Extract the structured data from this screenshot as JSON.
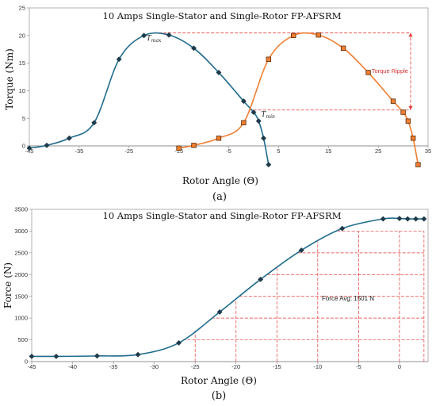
{
  "chart_data": [
    {
      "type": "line",
      "title": "10 Amps Single-Stator and Single-Rotor FP-AFSRM",
      "xlabel": "Rotor Angle (Θ)",
      "ylabel": "Torque (Nm)",
      "caption": "(a)",
      "xlim": [
        -45,
        35
      ],
      "ylim": [
        0,
        25
      ],
      "xticks": [
        -45,
        -35,
        -25,
        -15,
        -5,
        5,
        15,
        25,
        35
      ],
      "yticks": [
        0,
        5,
        10,
        15,
        20,
        25
      ],
      "grid": false,
      "series": [
        {
          "color": "#1f6b8c",
          "marker": "diamond",
          "x": [
            -45,
            -41.5,
            -37,
            -32,
            -27,
            -22,
            -17,
            -12,
            -7,
            -2,
            0,
            1,
            2,
            3
          ],
          "y": [
            -0.4,
            0.1,
            1.4,
            4.2,
            15.7,
            20.0,
            20.1,
            17.7,
            13.3,
            8.1,
            6.1,
            4.5,
            1.4,
            -3.4
          ]
        },
        {
          "color": "#f07f32",
          "marker": "square",
          "x": [
            -15,
            -12,
            -7,
            -2,
            3,
            8,
            13,
            18,
            23,
            28,
            30,
            31,
            32,
            33
          ],
          "y": [
            -0.4,
            0.1,
            1.4,
            4.2,
            15.7,
            20.0,
            20.1,
            17.7,
            13.3,
            8.1,
            6.1,
            4.5,
            1.4,
            -3.4
          ]
        }
      ],
      "annotations": {
        "t_max": {
          "main": "T",
          "sub": "max"
        },
        "t_min": {
          "main": "T",
          "sub": "min"
        },
        "ripple": "Torque Ripple",
        "ripple_color": "#e53935",
        "max_level": 20.5,
        "min_level": 6.5
      }
    },
    {
      "type": "line",
      "title": "10 Amps Single-Stator and Single-Rotor FP-AFSRM",
      "xlabel": "Rotor Angle (Θ)",
      "ylabel": "Force (N)",
      "caption": "(b)",
      "xlim": [
        -45,
        3.5
      ],
      "ylim": [
        0,
        3500
      ],
      "xticks": [
        -45,
        -40,
        -35,
        -30,
        -25,
        -20,
        -15,
        -10,
        -5,
        0,
        5
      ],
      "yticks": [
        0,
        500,
        1000,
        1500,
        2000,
        2500,
        3000,
        3500
      ],
      "grid": false,
      "series": [
        {
          "color": "#1f6b8c",
          "marker": "diamond",
          "x": [
            -45,
            -42,
            -37,
            -32,
            -27,
            -22,
            -17,
            -12,
            -7,
            -2,
            0,
            1,
            2,
            3
          ],
          "y": [
            120,
            120,
            130,
            160,
            430,
            1140,
            1890,
            2560,
            3060,
            3280,
            3290,
            3280,
            3280,
            3280
          ]
        }
      ],
      "annotations": {
        "force_avg": "Force Avg: 1501 N",
        "ref_color": "#e53935"
      }
    }
  ]
}
